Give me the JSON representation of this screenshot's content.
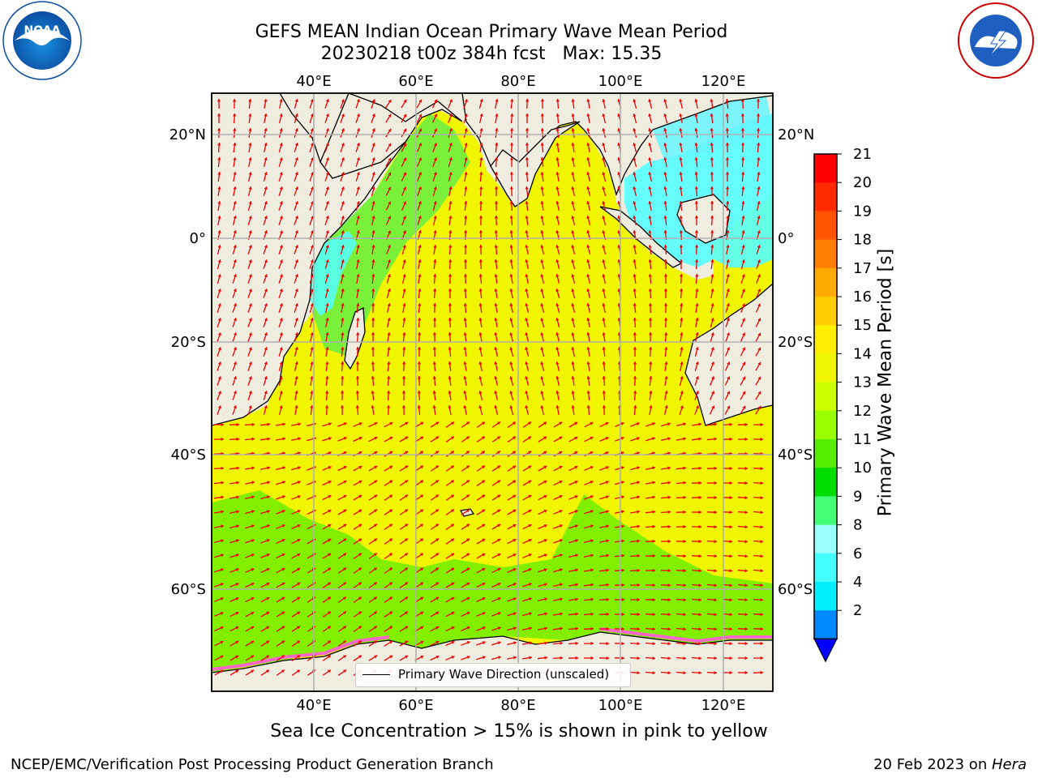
{
  "title": "GEFS MEAN Indian Ocean Primary Wave Mean Period",
  "subtitle": "20230218 t00z 384h fcst   Max: 15.35",
  "caption": "Sea Ice Concentration > 15% is shown in pink to yellow",
  "footer_left": "NCEP/EMC/Verification Post Processing Product Generation Branch",
  "footer_right_date": "20 Feb 2023 on ",
  "footer_right_host": "Hera",
  "legend_label": "Primary Wave Direction (unscaled)",
  "colorbar": {
    "label": "Primary Wave Mean Period [s]",
    "ticks": [
      "21",
      "20",
      "19",
      "18",
      "17",
      "16",
      "15",
      "14",
      "13",
      "12",
      "11",
      "10",
      "9",
      "8",
      "6",
      "4",
      "2"
    ],
    "colors": [
      "#ff0000",
      "#ff2a00",
      "#ff5500",
      "#ff7f00",
      "#ffaa00",
      "#ffcc00",
      "#ffee00",
      "#eef500",
      "#ccff00",
      "#99ff00",
      "#55ee00",
      "#00dd00",
      "#44ff77",
      "#99ffff",
      "#44ffff",
      "#00eeff",
      "#0088ff"
    ],
    "extend_color": "#0000ff"
  },
  "map": {
    "top_lon_labels": [
      "40°E",
      "60°E",
      "80°E",
      "100°E",
      "120°E"
    ],
    "bottom_lon_labels": [
      "40°E",
      "60°E",
      "80°E",
      "100°E",
      "120°E"
    ],
    "left_lat_labels": [
      "20°N",
      "0°",
      "20°S",
      "40°S",
      "60°S"
    ],
    "right_lat_labels": [
      "20°N",
      "0°",
      "20°S",
      "40°S",
      "60°S"
    ],
    "land_color": "#efeddf",
    "ocean_color": "#f2f500",
    "arrow_color": "#ee0000"
  },
  "logos": {
    "noaa": "NOAA",
    "nws": "NATIONAL WEATHER SERVICE"
  }
}
